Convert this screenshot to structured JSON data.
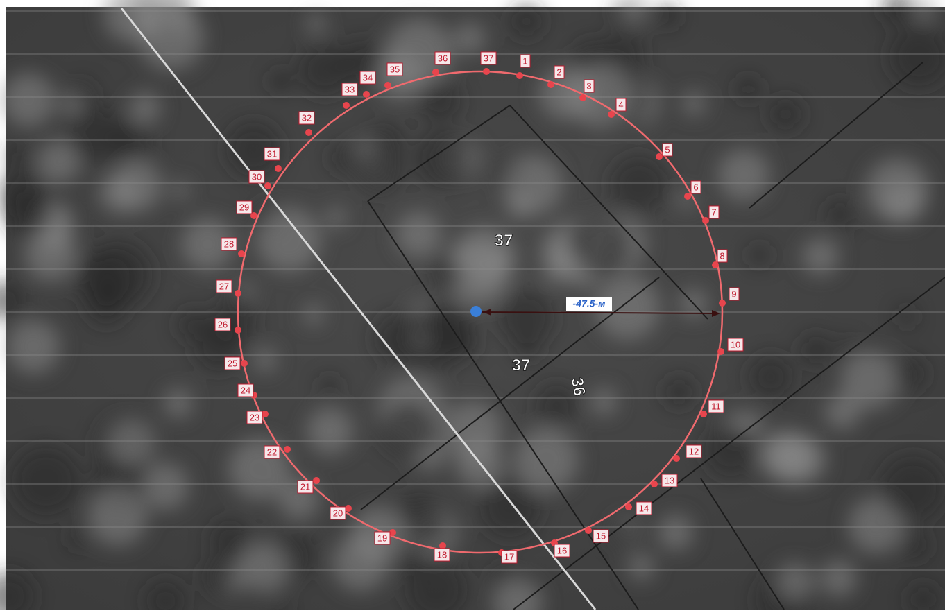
{
  "points": [
    {
      "label": "1"
    },
    {
      "label": "2"
    },
    {
      "label": "3"
    },
    {
      "label": "4"
    },
    {
      "label": "5"
    },
    {
      "label": "6"
    },
    {
      "label": "7"
    },
    {
      "label": "8"
    },
    {
      "label": "9"
    },
    {
      "label": "10"
    },
    {
      "label": "11"
    },
    {
      "label": "12"
    },
    {
      "label": "13"
    },
    {
      "label": "14"
    },
    {
      "label": "15"
    },
    {
      "label": "16"
    },
    {
      "label": "17"
    },
    {
      "label": "18"
    },
    {
      "label": "19"
    },
    {
      "label": "20"
    },
    {
      "label": "21"
    },
    {
      "label": "22"
    },
    {
      "label": "23"
    },
    {
      "label": "24"
    },
    {
      "label": "25"
    },
    {
      "label": "26"
    },
    {
      "label": "27"
    },
    {
      "label": "28"
    },
    {
      "label": "29"
    },
    {
      "label": "30"
    },
    {
      "label": "31"
    },
    {
      "label": "32"
    },
    {
      "label": "33"
    },
    {
      "label": "34"
    },
    {
      "label": "35"
    },
    {
      "label": "36"
    },
    {
      "label": "37"
    }
  ],
  "radius_label": "-47.5-м",
  "parcel_labels": [
    "37",
    "37",
    "36"
  ]
}
